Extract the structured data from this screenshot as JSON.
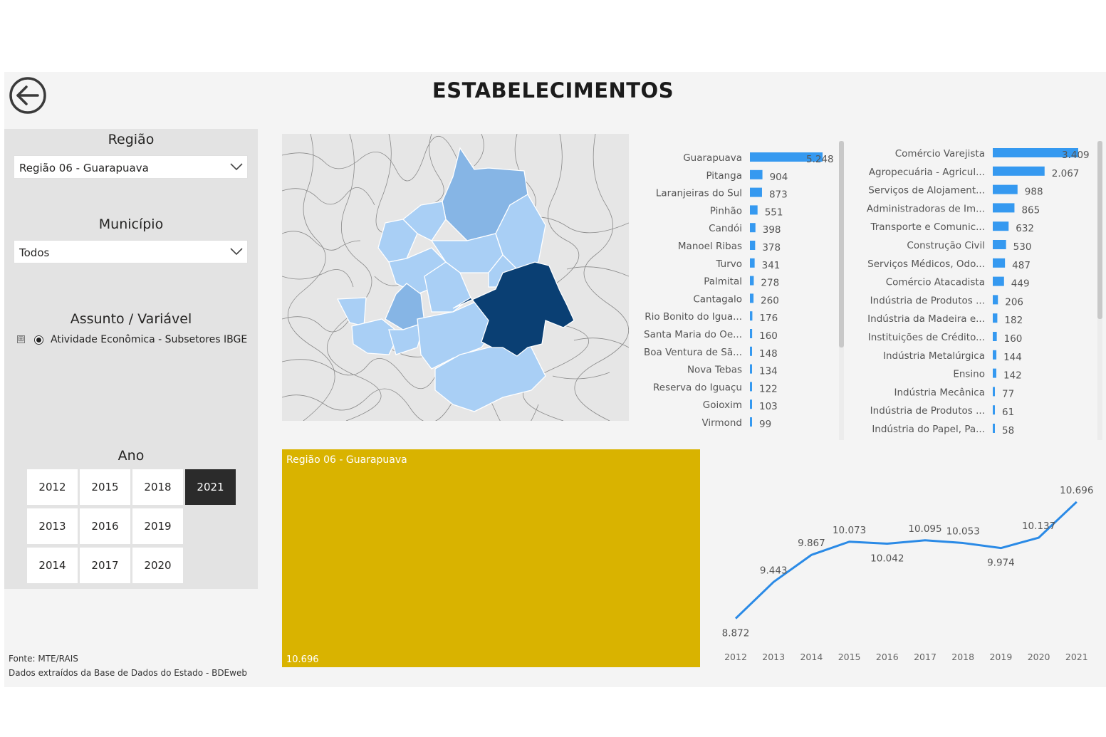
{
  "page": {
    "title": "ESTABELECIMENTOS",
    "footer_source": "Fonte: MTE/RAIS",
    "footer_data": "Dados extraídos da Base de Dados do Estado - BDEweb"
  },
  "filters": {
    "regiao": {
      "title": "Região",
      "value": "Região 06 - Guarapuava"
    },
    "municipio": {
      "title": "Município",
      "value": "Todos"
    },
    "assunto": {
      "title": "Assunto / Variável",
      "expand_symbol": "⊞",
      "item": "Atividade Econômica - Subsetores IBGE"
    },
    "ano": {
      "title": "Ano",
      "years": [
        "2012",
        "2015",
        "2018",
        "2021",
        "2013",
        "2016",
        "2019",
        "2014",
        "2017",
        "2020"
      ],
      "selected": "2021"
    }
  },
  "colors": {
    "bar": "#3599f0",
    "line": "#2a8ae6",
    "treemap": "#d9b300",
    "map_dark": "#0a3f73",
    "map_mid": "#86b5e5",
    "map_light": "#a9cff5",
    "map_base": "#e6e6e6"
  },
  "chart_data": [
    {
      "type": "bar",
      "orientation": "horizontal",
      "categories": [
        "Guarapuava",
        "Pitanga",
        "Laranjeiras do Sul",
        "Pinhão",
        "Candói",
        "Manoel Ribas",
        "Turvo",
        "Palmital",
        "Cantagalo",
        "Rio Bonito do Igua...",
        "Santa Maria do Oe...",
        "Boa Ventura de Sã...",
        "Nova Tebas",
        "Reserva do Iguaçu",
        "Goioxim",
        "Virmond"
      ],
      "values": [
        5248,
        904,
        873,
        551,
        398,
        378,
        341,
        278,
        260,
        176,
        160,
        148,
        134,
        122,
        103,
        99
      ],
      "value_labels": [
        "5.248",
        "904",
        "873",
        "551",
        "398",
        "378",
        "341",
        "278",
        "260",
        "176",
        "160",
        "148",
        "134",
        "122",
        "103",
        "99"
      ]
    },
    {
      "type": "bar",
      "orientation": "horizontal",
      "categories": [
        "Comércio Varejista",
        "Agropecuária - Agricul...",
        "Serviços de Alojament...",
        "Administradoras de Im...",
        "Transporte e Comunic...",
        "Construção Civil",
        "Serviços Médicos, Odo...",
        "Comércio Atacadista",
        "Indústria de Produtos ...",
        "Indústria da Madeira e...",
        "Instituições de Crédito...",
        "Indústria Metalúrgica",
        "Ensino",
        "Indústria Mecânica",
        "Indústria de Produtos ...",
        "Indústria do Papel, Pa..."
      ],
      "values": [
        3409,
        2067,
        988,
        865,
        632,
        530,
        487,
        449,
        206,
        182,
        160,
        144,
        142,
        77,
        61,
        58
      ],
      "value_labels": [
        "3.409",
        "2.067",
        "988",
        "865",
        "632",
        "530",
        "487",
        "449",
        "206",
        "182",
        "160",
        "144",
        "142",
        "77",
        "61",
        "58"
      ]
    },
    {
      "type": "treemap",
      "categories": [
        "Região 06 - Guarapuava"
      ],
      "values": [
        10696
      ],
      "value_labels": [
        "10.696"
      ]
    },
    {
      "type": "line",
      "x": [
        "2012",
        "2013",
        "2014",
        "2015",
        "2016",
        "2017",
        "2018",
        "2019",
        "2020",
        "2021"
      ],
      "values": [
        8872,
        9443,
        9867,
        10073,
        10042,
        10095,
        10053,
        9974,
        10137,
        10696
      ],
      "value_labels": [
        "8.872",
        "9.443",
        "9.867",
        "10.073",
        "10.042",
        "10.095",
        "10.053",
        "9.974",
        "10.137",
        "10.696"
      ],
      "label_positions": [
        "below",
        "above",
        "above",
        "above",
        "below",
        "above",
        "above",
        "below",
        "above",
        "above"
      ],
      "ylim": [
        8800,
        10750
      ]
    }
  ]
}
